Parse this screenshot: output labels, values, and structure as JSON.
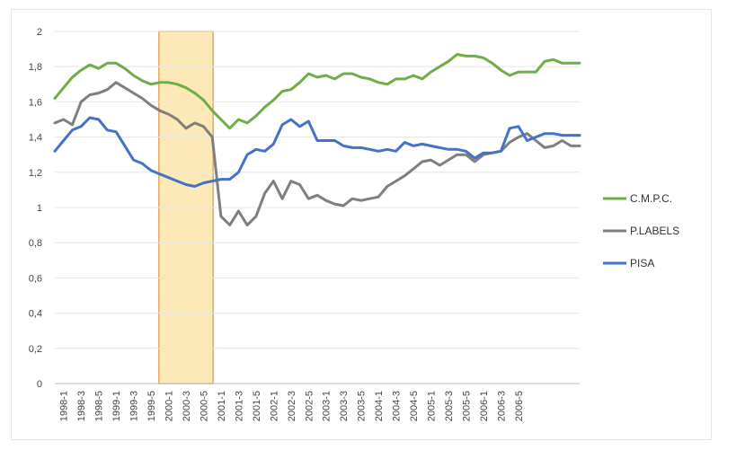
{
  "chart_data": {
    "type": "line",
    "title": "",
    "xlabel": "",
    "ylabel": "",
    "ylim": [
      0,
      2
    ],
    "yticks": [
      0,
      0.2,
      0.4,
      0.6,
      0.8,
      1,
      1.2,
      1.4,
      1.6,
      1.8,
      2
    ],
    "ytick_labels": [
      "0",
      "0,2",
      "0,4",
      "0,6",
      "0,8",
      "1",
      "1,2",
      "1,4",
      "1,6",
      "1,8",
      "2"
    ],
    "x_tick_labels": [
      "1998-1",
      "1998-3",
      "1998-5",
      "1999-1",
      "1999-3",
      "1999-5",
      "2000-1",
      "2000-3",
      "2000-5",
      "2001-1",
      "2001-3",
      "2001-5",
      "2002-1",
      "2002-3",
      "2002-5",
      "2003-1",
      "2003-3",
      "2003-5",
      "2004-1",
      "2004-3",
      "2004-5",
      "2005-1",
      "2005-3",
      "2005-5",
      "2006-1",
      "2006-3",
      "2006-5"
    ],
    "grid": "horizontal",
    "legend_position": "right",
    "highlight_band": {
      "from": "2000-1",
      "to": "2000-5",
      "color": "#fde9b8"
    },
    "series": [
      {
        "name": "C.M.P.C.",
        "color": "#70ad47",
        "values": [
          1.62,
          1.68,
          1.74,
          1.78,
          1.81,
          1.79,
          1.82,
          1.82,
          1.79,
          1.75,
          1.72,
          1.7,
          1.71,
          1.71,
          1.7,
          1.68,
          1.65,
          1.61,
          1.55,
          1.5,
          1.45,
          1.5,
          1.48,
          1.52,
          1.57,
          1.61,
          1.66,
          1.67,
          1.71,
          1.76,
          1.74,
          1.75,
          1.73,
          1.76,
          1.76,
          1.74,
          1.73,
          1.71,
          1.7,
          1.73,
          1.73,
          1.75,
          1.73,
          1.77,
          1.8,
          1.83,
          1.87,
          1.86,
          1.86,
          1.85,
          1.82,
          1.78,
          1.75,
          1.77,
          1.77,
          1.77,
          1.83,
          1.84,
          1.82,
          1.82,
          1.82
        ]
      },
      {
        "name": "P.LABELS",
        "color": "#7f7f7f",
        "values": [
          1.48,
          1.5,
          1.47,
          1.6,
          1.64,
          1.65,
          1.67,
          1.71,
          1.68,
          1.65,
          1.62,
          1.58,
          1.55,
          1.53,
          1.5,
          1.45,
          1.48,
          1.46,
          1.4,
          0.95,
          0.9,
          0.98,
          0.9,
          0.95,
          1.08,
          1.15,
          1.05,
          1.15,
          1.13,
          1.05,
          1.07,
          1.04,
          1.02,
          1.01,
          1.05,
          1.04,
          1.05,
          1.06,
          1.12,
          1.15,
          1.18,
          1.22,
          1.26,
          1.27,
          1.24,
          1.27,
          1.3,
          1.3,
          1.26,
          1.3,
          1.31,
          1.32,
          1.37,
          1.4,
          1.42,
          1.38,
          1.34,
          1.35,
          1.38,
          1.35,
          1.35
        ]
      },
      {
        "name": "PISA",
        "color": "#4472c4",
        "values": [
          1.32,
          1.38,
          1.44,
          1.46,
          1.51,
          1.5,
          1.44,
          1.43,
          1.35,
          1.27,
          1.25,
          1.21,
          1.19,
          1.17,
          1.15,
          1.13,
          1.12,
          1.14,
          1.15,
          1.16,
          1.16,
          1.2,
          1.3,
          1.33,
          1.32,
          1.36,
          1.47,
          1.5,
          1.46,
          1.49,
          1.38,
          1.38,
          1.38,
          1.35,
          1.34,
          1.34,
          1.33,
          1.32,
          1.33,
          1.32,
          1.37,
          1.35,
          1.36,
          1.35,
          1.34,
          1.33,
          1.33,
          1.32,
          1.28,
          1.31,
          1.31,
          1.32,
          1.45,
          1.46,
          1.38,
          1.4,
          1.42,
          1.42,
          1.41,
          1.41,
          1.41
        ]
      }
    ]
  }
}
